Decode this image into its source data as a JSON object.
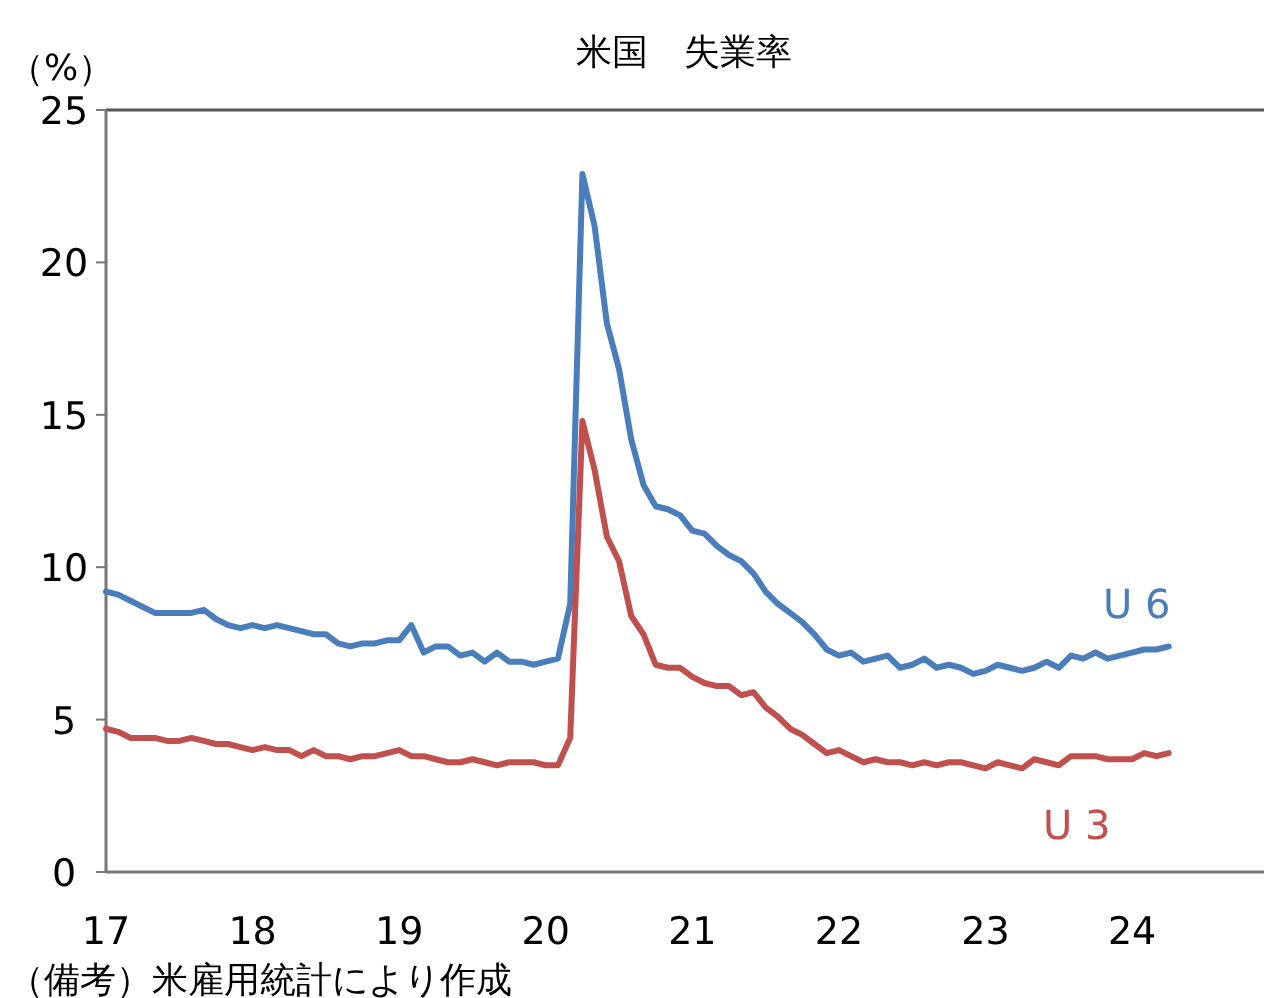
{
  "chart_data": {
    "type": "line",
    "title": "米国　失業率",
    "ylabel": "（%）",
    "annotations": [
      "（備考）米雇用統計により作成"
    ],
    "xlim": [
      17,
      24.9
    ],
    "xticks": [
      17,
      18,
      19,
      20,
      21,
      22,
      23,
      24
    ],
    "ylim": [
      0,
      25
    ],
    "yticks": [
      0,
      5,
      10,
      15,
      20,
      25
    ],
    "grid": false,
    "line_style": "solid",
    "x": [
      17,
      17.083,
      17.167,
      17.25,
      17.333,
      17.417,
      17.5,
      17.583,
      17.667,
      17.75,
      17.833,
      17.917,
      18,
      18.083,
      18.167,
      18.25,
      18.333,
      18.417,
      18.5,
      18.583,
      18.667,
      18.75,
      18.833,
      18.917,
      19,
      19.083,
      19.167,
      19.25,
      19.333,
      19.417,
      19.5,
      19.583,
      19.667,
      19.75,
      19.833,
      19.917,
      20,
      20.083,
      20.167,
      20.25,
      20.333,
      20.417,
      20.5,
      20.583,
      20.667,
      20.75,
      20.833,
      20.917,
      21,
      21.083,
      21.167,
      21.25,
      21.333,
      21.417,
      21.5,
      21.583,
      21.667,
      21.75,
      21.833,
      21.917,
      22,
      22.083,
      22.167,
      22.25,
      22.333,
      22.417,
      22.5,
      22.583,
      22.667,
      22.75,
      22.833,
      22.917,
      23,
      23.083,
      23.167,
      23.25,
      23.333,
      23.417,
      23.5,
      23.583,
      23.667,
      23.75,
      23.833,
      23.917,
      24,
      24.083,
      24.167,
      24.25
    ],
    "series": [
      {
        "name": "U 6",
        "color": "#4a7ebb",
        "values": [
          9.2,
          9.1,
          8.9,
          8.7,
          8.5,
          8.5,
          8.5,
          8.5,
          8.6,
          8.3,
          8.1,
          8.0,
          8.1,
          8.0,
          8.1,
          8.0,
          7.9,
          7.8,
          7.8,
          7.5,
          7.4,
          7.5,
          7.5,
          7.6,
          7.6,
          8.1,
          7.2,
          7.4,
          7.4,
          7.1,
          7.2,
          6.9,
          7.2,
          6.9,
          6.9,
          6.8,
          6.9,
          7.0,
          8.8,
          22.9,
          21.2,
          18.0,
          16.5,
          14.2,
          12.7,
          12.0,
          11.9,
          11.7,
          11.2,
          11.1,
          10.7,
          10.4,
          10.2,
          9.8,
          9.2,
          8.8,
          8.5,
          8.2,
          7.8,
          7.3,
          7.1,
          7.2,
          6.9,
          7.0,
          7.1,
          6.7,
          6.8,
          7.0,
          6.7,
          6.8,
          6.7,
          6.5,
          6.6,
          6.8,
          6.7,
          6.6,
          6.7,
          6.9,
          6.7,
          7.1,
          7.0,
          7.2,
          7.0,
          7.1,
          7.2,
          7.3,
          7.3,
          7.4
        ]
      },
      {
        "name": "U 3",
        "color": "#c0504d",
        "values": [
          4.7,
          4.6,
          4.4,
          4.4,
          4.4,
          4.3,
          4.3,
          4.4,
          4.3,
          4.2,
          4.2,
          4.1,
          4.0,
          4.1,
          4.0,
          4.0,
          3.8,
          4.0,
          3.8,
          3.8,
          3.7,
          3.8,
          3.8,
          3.9,
          4.0,
          3.8,
          3.8,
          3.7,
          3.6,
          3.6,
          3.7,
          3.6,
          3.5,
          3.6,
          3.6,
          3.6,
          3.5,
          3.5,
          4.4,
          14.8,
          13.2,
          11.0,
          10.2,
          8.4,
          7.8,
          6.8,
          6.7,
          6.7,
          6.4,
          6.2,
          6.1,
          6.1,
          5.8,
          5.9,
          5.4,
          5.1,
          4.7,
          4.5,
          4.2,
          3.9,
          4.0,
          3.8,
          3.6,
          3.7,
          3.6,
          3.6,
          3.5,
          3.6,
          3.5,
          3.6,
          3.6,
          3.5,
          3.4,
          3.6,
          3.5,
          3.4,
          3.7,
          3.6,
          3.5,
          3.8,
          3.8,
          3.8,
          3.7,
          3.7,
          3.7,
          3.9,
          3.8,
          3.9
        ]
      }
    ]
  }
}
